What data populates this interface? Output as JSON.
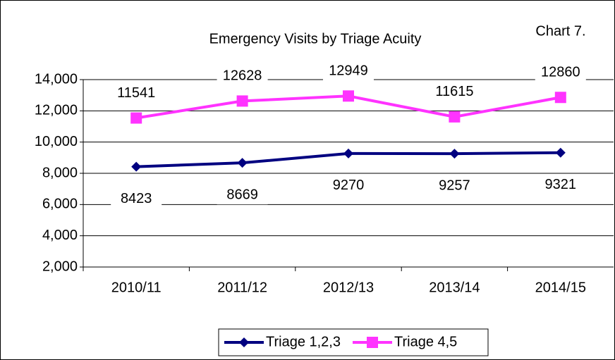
{
  "chart_data": {
    "type": "line",
    "title": "Emergency Visits by Triage Acuity",
    "annotation": "Chart 7.",
    "categories": [
      "2010/11",
      "2011/12",
      "2012/13",
      "2013/14",
      "2014/15"
    ],
    "series": [
      {
        "name": "Triage 1,2,3",
        "color": "#000080",
        "marker": "diamond",
        "values": [
          8423,
          8669,
          9270,
          9257,
          9321
        ]
      },
      {
        "name": "Triage 4,5",
        "color": "#ff33ff",
        "marker": "square",
        "values": [
          11541,
          12628,
          12949,
          11615,
          12860
        ]
      }
    ],
    "ylim": [
      2000,
      14000
    ],
    "yticks": [
      {
        "value": 2000,
        "label": "2,000"
      },
      {
        "value": 4000,
        "label": "4,000"
      },
      {
        "value": 6000,
        "label": "6,000"
      },
      {
        "value": 8000,
        "label": "8,000"
      },
      {
        "value": 10000,
        "label": "10,000"
      },
      {
        "value": 12000,
        "label": "12,000"
      },
      {
        "value": 14000,
        "label": "14,000"
      }
    ],
    "grid": true,
    "legend": "bottom"
  }
}
